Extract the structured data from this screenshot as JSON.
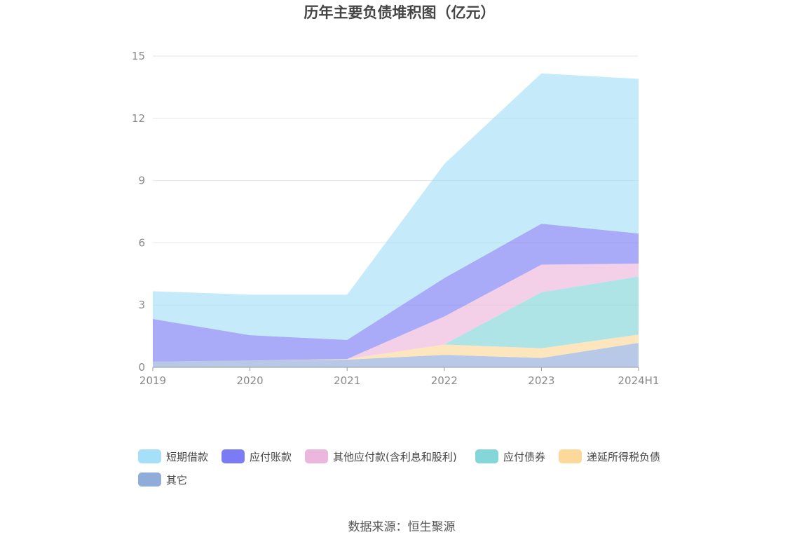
{
  "chart_data": {
    "type": "area",
    "stacked": true,
    "title": "历年主要负债堆积图（亿元）",
    "source": "数据来源：恒生聚源",
    "xlabel": "",
    "ylabel": "",
    "categories": [
      "2019",
      "2020",
      "2021",
      "2022",
      "2023",
      "2024H1"
    ],
    "ylim": [
      0,
      15
    ],
    "yticks": [
      "0",
      "3",
      "6",
      "9",
      "12",
      "15"
    ],
    "grid": true,
    "legend_position": "bottom",
    "series": [
      {
        "name": "其它",
        "color": "#90acd9",
        "values": [
          0.28,
          0.33,
          0.37,
          0.6,
          0.45,
          1.18
        ]
      },
      {
        "name": "递延所得税负债",
        "color": "#fcd99b",
        "values": [
          0.0,
          0.0,
          0.03,
          0.5,
          0.47,
          0.4
        ]
      },
      {
        "name": "应付债券",
        "color": "#84d6d8",
        "values": [
          0.0,
          0.0,
          0.0,
          0.0,
          2.7,
          2.8
        ]
      },
      {
        "name": "其他应付款(含利息和股利)",
        "color": "#ecb7dc",
        "values": [
          0.0,
          0.0,
          0.0,
          1.35,
          1.33,
          0.62
        ]
      },
      {
        "name": "应付账款",
        "color": "#7b7cf5",
        "values": [
          2.05,
          1.22,
          0.92,
          1.85,
          1.97,
          1.45
        ]
      },
      {
        "name": "短期借款",
        "color": "#a6e0f8",
        "values": [
          1.34,
          1.95,
          2.18,
          5.5,
          7.25,
          7.45
        ]
      }
    ],
    "legend_order": [
      "短期借款",
      "应付账款",
      "其他应付款(含利息和股利)",
      "应付债券",
      "递延所得税负债",
      "其它"
    ]
  }
}
